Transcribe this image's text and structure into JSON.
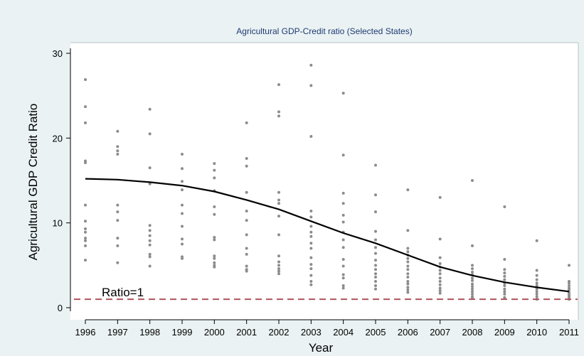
{
  "chart_data": {
    "type": "scatter",
    "title": "Agricultural GDP-Credit ratio (Selected States)",
    "xlabel": "Year",
    "ylabel": "Agricultural GDP Credit Ratio",
    "x_ticks": [
      1996,
      1997,
      1998,
      1999,
      2000,
      2001,
      2002,
      2003,
      2004,
      2005,
      2006,
      2007,
      2008,
      2009,
      2010,
      2011
    ],
    "y_ticks": [
      0,
      10,
      20,
      30
    ],
    "xlim": [
      1996,
      2011
    ],
    "ylim": [
      0,
      30
    ],
    "grid": false,
    "colors": {
      "frame": "#eaf2f3",
      "points": "#8c8c8c",
      "fit": "#000000",
      "reference": "#b1545e",
      "title": "#1f3a73"
    },
    "points": [
      {
        "x": 1996,
        "ys": [
          26.9,
          23.7,
          21.8,
          17.3,
          17.1,
          12.1,
          10.2,
          9.3,
          8.9,
          8.2,
          7.9,
          7.3,
          5.6
        ]
      },
      {
        "x": 1997,
        "ys": [
          20.8,
          19.0,
          18.5,
          18.1,
          12.1,
          11.3,
          10.3,
          8.2,
          7.3,
          5.3
        ]
      },
      {
        "x": 1998,
        "ys": [
          23.4,
          20.5,
          16.5,
          14.6,
          9.7,
          9.1,
          8.5,
          7.9,
          7.4,
          6.3,
          6.0,
          4.9
        ]
      },
      {
        "x": 1999,
        "ys": [
          18.1,
          16.4,
          14.9,
          13.9,
          12.1,
          11.1,
          9.6,
          8.1,
          7.5,
          6.0,
          5.8
        ]
      },
      {
        "x": 2000,
        "ys": [
          17.0,
          16.2,
          15.3,
          13.8,
          11.9,
          11.0,
          8.3,
          8.0,
          6.1,
          5.8,
          5.3,
          5.0,
          4.8
        ]
      },
      {
        "x": 2001,
        "ys": [
          21.8,
          17.6,
          16.7,
          13.6,
          11.4,
          10.3,
          8.6,
          7.0,
          6.3,
          4.9,
          4.5,
          4.3
        ]
      },
      {
        "x": 2002,
        "ys": [
          26.3,
          23.1,
          22.6,
          13.6,
          12.7,
          12.3,
          10.8,
          8.6,
          6.1,
          5.4,
          5.0,
          4.6,
          4.3,
          4.0
        ]
      },
      {
        "x": 2003,
        "ys": [
          28.6,
          26.2,
          20.2,
          11.4,
          10.7,
          9.6,
          8.9,
          8.4,
          7.6,
          7.0,
          5.9,
          5.1,
          4.6,
          3.8,
          3.1,
          2.7
        ]
      },
      {
        "x": 2004,
        "ys": [
          25.3,
          18.0,
          13.5,
          12.3,
          10.9,
          10.1,
          8.9,
          8.0,
          7.1,
          5.7,
          4.9,
          3.9,
          3.5,
          2.6,
          2.3
        ]
      },
      {
        "x": 2005,
        "ys": [
          16.8,
          13.3,
          11.3,
          9.0,
          8.0,
          7.1,
          6.4,
          5.6,
          5.0,
          4.5,
          4.0,
          3.6,
          3.1,
          2.6,
          2.2
        ]
      },
      {
        "x": 2006,
        "ys": [
          13.9,
          9.1,
          7.0,
          6.6,
          6.2,
          5.8,
          5.4,
          4.9,
          4.5,
          4.0,
          3.6,
          3.1,
          2.8,
          2.4,
          2.1,
          1.8
        ]
      },
      {
        "x": 2007,
        "ys": [
          13.0,
          8.1,
          5.9,
          5.2,
          4.8,
          4.4,
          4.0,
          3.5,
          3.1,
          2.7,
          2.3,
          2.0,
          1.7
        ]
      },
      {
        "x": 2008,
        "ys": [
          15.0,
          7.3,
          5.0,
          4.6,
          4.2,
          3.9,
          3.5,
          3.2,
          2.8,
          2.5,
          2.2,
          1.9,
          1.6,
          1.3,
          1.1
        ]
      },
      {
        "x": 2009,
        "ys": [
          11.9,
          5.7,
          4.5,
          4.1,
          3.7,
          3.3,
          2.9,
          2.6,
          2.2,
          1.9,
          1.6,
          1.2
        ]
      },
      {
        "x": 2010,
        "ys": [
          7.9,
          4.4,
          3.8,
          3.3,
          2.9,
          2.6,
          2.2,
          1.9,
          1.6,
          1.3,
          1.0
        ]
      },
      {
        "x": 2011,
        "ys": [
          5.0,
          3.1,
          2.9,
          2.6,
          2.3,
          2.1,
          1.8,
          1.6,
          1.4,
          1.2,
          1.0
        ]
      }
    ],
    "fit_line": {
      "x": [
        1996,
        1997,
        1998,
        1999,
        2000,
        2001,
        2002,
        2003,
        2004,
        2005,
        2006,
        2007,
        2008,
        2009,
        2010,
        2011
      ],
      "y": [
        15.2,
        15.1,
        14.8,
        14.4,
        13.7,
        12.7,
        11.6,
        10.2,
        8.8,
        7.6,
        6.2,
        4.8,
        3.8,
        3.0,
        2.4,
        1.9
      ]
    },
    "reference_line": {
      "y": 1,
      "label": "Ratio=1"
    }
  }
}
